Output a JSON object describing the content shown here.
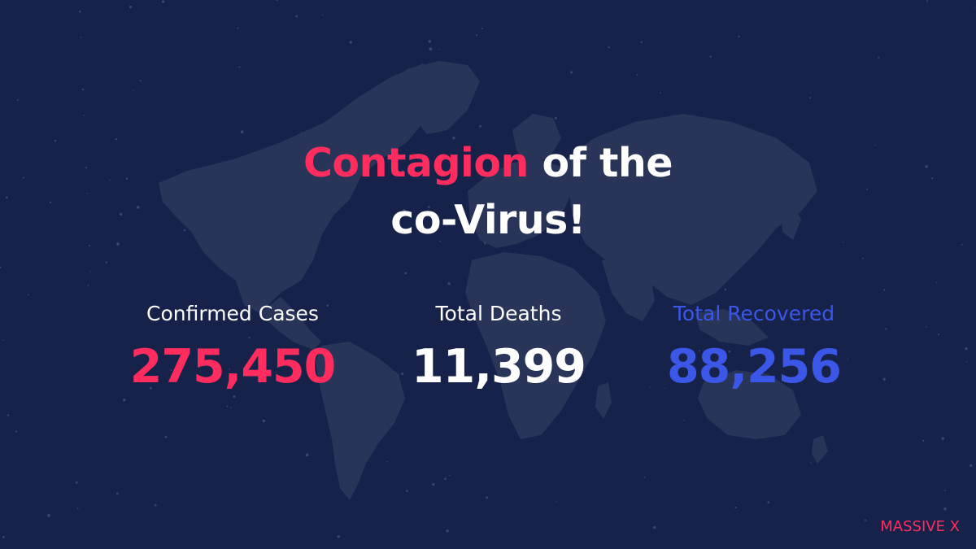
{
  "headline": {
    "accent_word": "Contagion",
    "line1_rest": " of the",
    "line2": "co-Virus!"
  },
  "stats": {
    "confirmed": {
      "label": "Confirmed Cases",
      "value": "275,450"
    },
    "deaths": {
      "label": "Total Deaths",
      "value": "11,399"
    },
    "recovered": {
      "label": "Total Recovered",
      "value": "88,256"
    }
  },
  "brand": "MASSIVE X",
  "colors": {
    "background": "#17224a",
    "map": "#283458",
    "accent_red": "#ff2d5e",
    "accent_blue": "#3b57e8",
    "text": "#ffffff"
  }
}
